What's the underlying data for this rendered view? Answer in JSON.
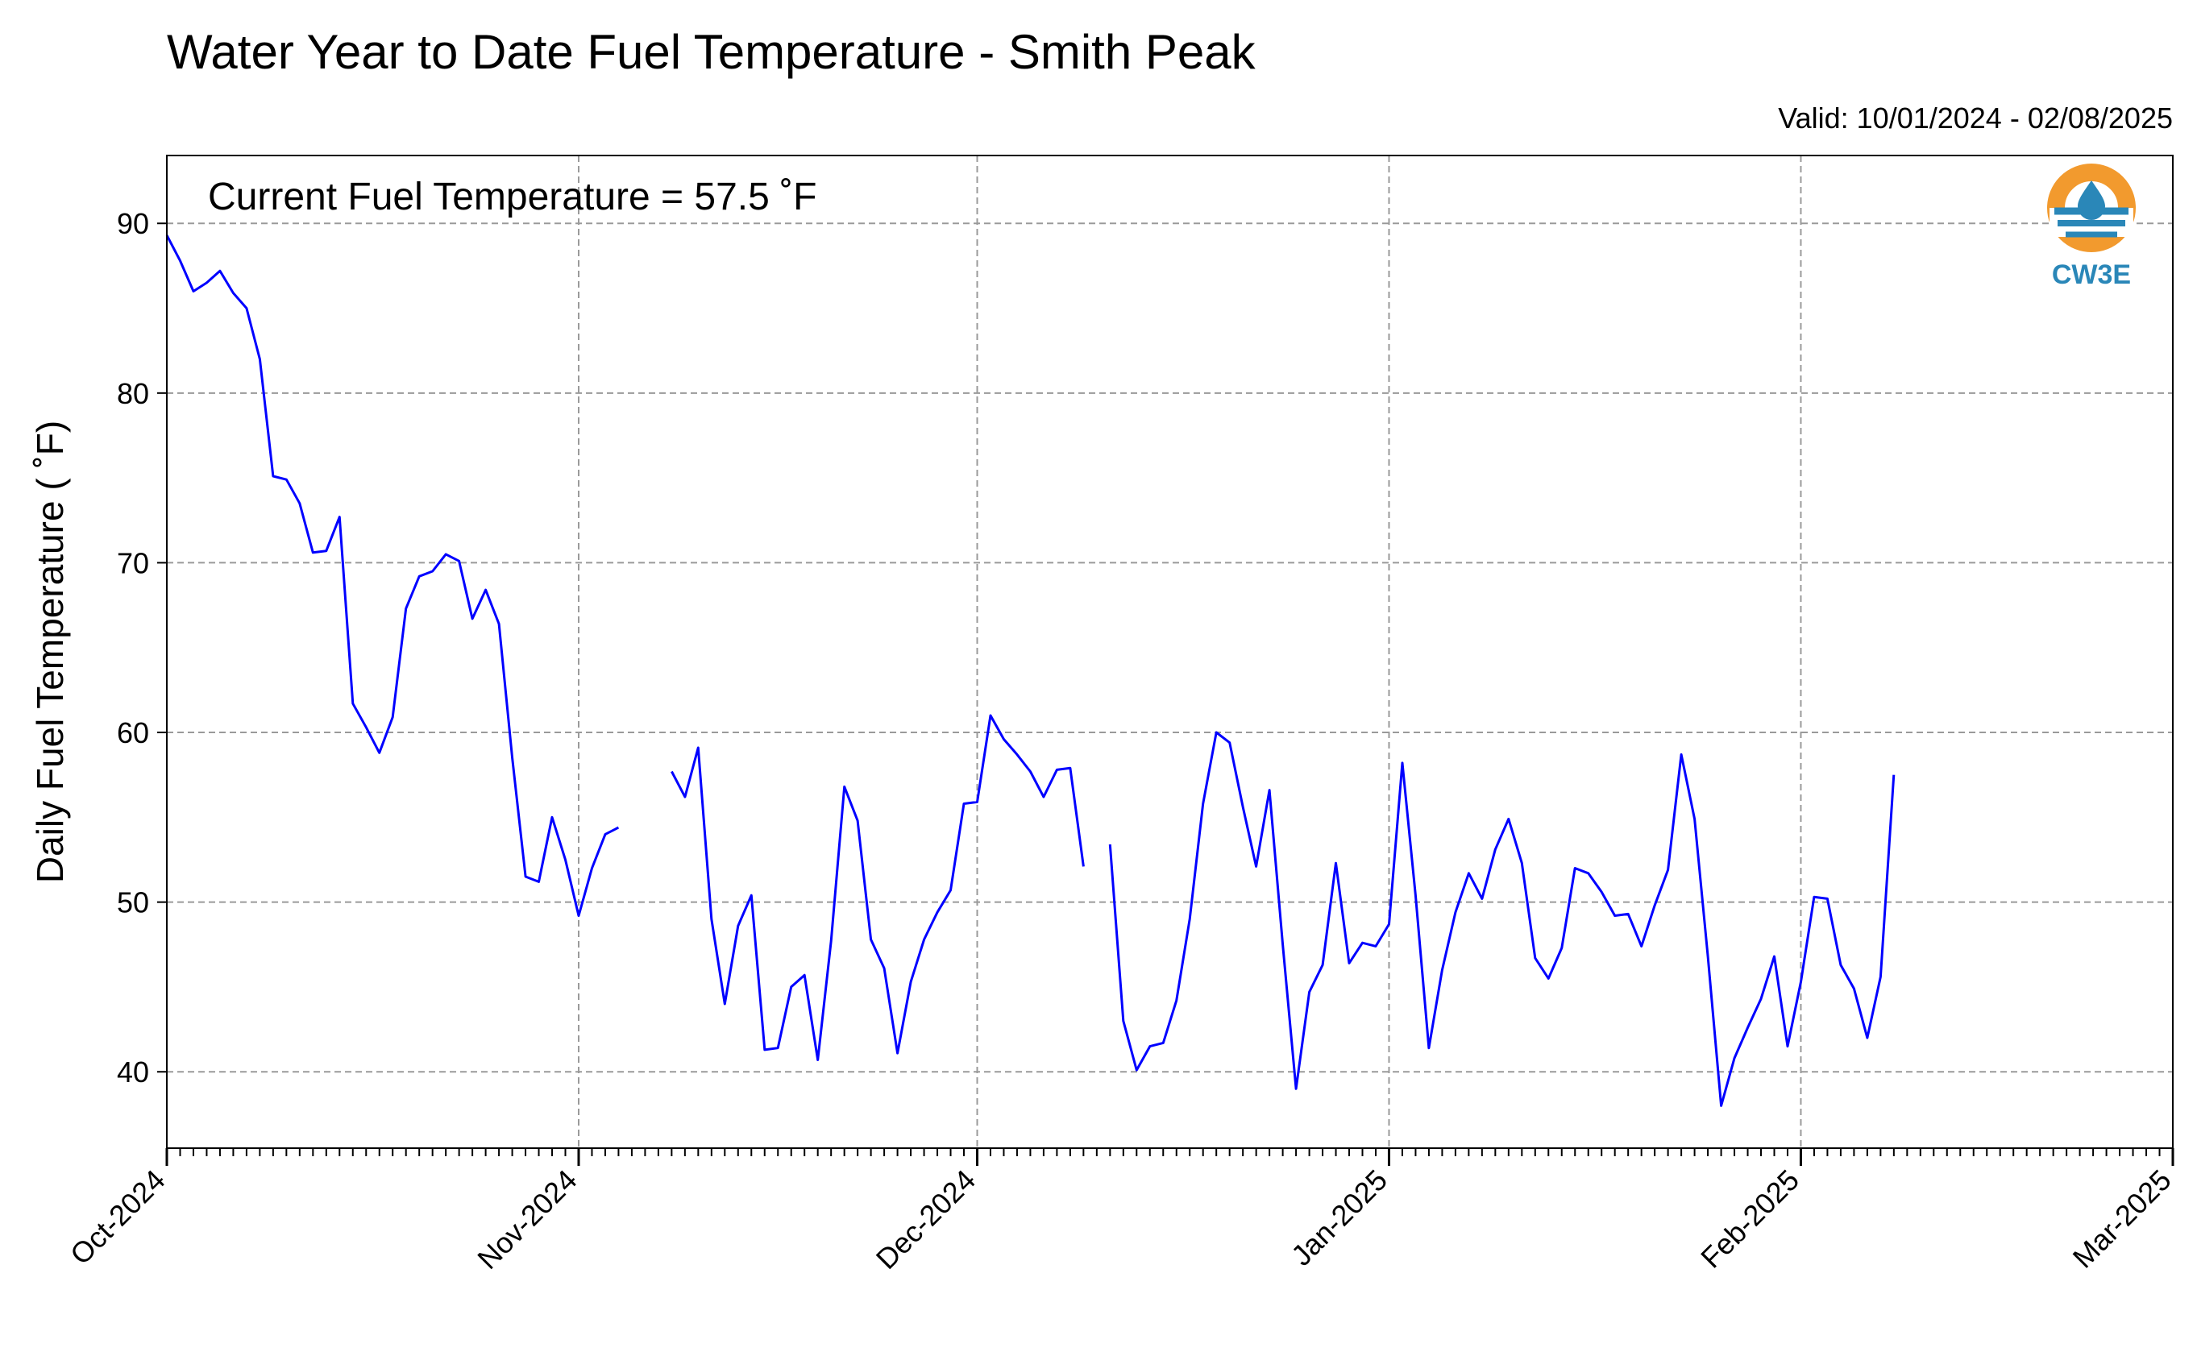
{
  "chart_data": {
    "type": "line",
    "title": "Water Year to Date Fuel Temperature - Smith Peak",
    "subtitle": "Valid: 10/01/2024 - 02/08/2025",
    "xlabel": "",
    "ylabel": "Daily Fuel Temperature ( ˚F)",
    "annotation": "Current Fuel Temperature = 57.5 ˚F",
    "logo_text": "CW3E",
    "x_range": [
      "2024-10-01",
      "2025-03-01"
    ],
    "ylim": [
      35.5,
      94
    ],
    "yticks": [
      40,
      50,
      60,
      70,
      80,
      90
    ],
    "xticks": [
      {
        "date": "2024-10-01",
        "label": "Oct-2024"
      },
      {
        "date": "2024-11-01",
        "label": "Nov-2024"
      },
      {
        "date": "2024-12-01",
        "label": "Dec-2024"
      },
      {
        "date": "2025-01-01",
        "label": "Jan-2025"
      },
      {
        "date": "2025-02-01",
        "label": "Feb-2025"
      },
      {
        "date": "2025-03-01",
        "label": "Mar-2025"
      }
    ],
    "grid": true,
    "series": [
      {
        "color": "#0000ff",
        "x": [
          "2024-10-01",
          "2024-10-02",
          "2024-10-03",
          "2024-10-04",
          "2024-10-05",
          "2024-10-06",
          "2024-10-07",
          "2024-10-08",
          "2024-10-09",
          "2024-10-10",
          "2024-10-11",
          "2024-10-12",
          "2024-10-13",
          "2024-10-14",
          "2024-10-15",
          "2024-10-16",
          "2024-10-17",
          "2024-10-18",
          "2024-10-19",
          "2024-10-20",
          "2024-10-21",
          "2024-10-22",
          "2024-10-23",
          "2024-10-24",
          "2024-10-25",
          "2024-10-26",
          "2024-10-27",
          "2024-10-28",
          "2024-10-29",
          "2024-10-30",
          "2024-10-31",
          "2024-11-01",
          "2024-11-02",
          "2024-11-03",
          "2024-11-04",
          "2024-11-05",
          "2024-11-06",
          "2024-11-07",
          "2024-11-08",
          "2024-11-09",
          "2024-11-10",
          "2024-11-11",
          "2024-11-12",
          "2024-11-13",
          "2024-11-14",
          "2024-11-15",
          "2024-11-16",
          "2024-11-17",
          "2024-11-18",
          "2024-11-19",
          "2024-11-20",
          "2024-11-21",
          "2024-11-22",
          "2024-11-23",
          "2024-11-24",
          "2024-11-25",
          "2024-11-26",
          "2024-11-27",
          "2024-11-28",
          "2024-11-29",
          "2024-11-30",
          "2024-12-01",
          "2024-12-02",
          "2024-12-03",
          "2024-12-04",
          "2024-12-05",
          "2024-12-06",
          "2024-12-07",
          "2024-12-08",
          "2024-12-09",
          "2024-12-10",
          "2024-12-11",
          "2024-12-12",
          "2024-12-13",
          "2024-12-14",
          "2024-12-15",
          "2024-12-16",
          "2024-12-17",
          "2024-12-18",
          "2024-12-19",
          "2024-12-20",
          "2024-12-21",
          "2024-12-22",
          "2024-12-23",
          "2024-12-24",
          "2024-12-25",
          "2024-12-26",
          "2024-12-27",
          "2024-12-28",
          "2024-12-29",
          "2024-12-30",
          "2024-12-31",
          "2025-01-01",
          "2025-01-02",
          "2025-01-03",
          "2025-01-04",
          "2025-01-05",
          "2025-01-06",
          "2025-01-07",
          "2025-01-08",
          "2025-01-09",
          "2025-01-10",
          "2025-01-11",
          "2025-01-12",
          "2025-01-13",
          "2025-01-14",
          "2025-01-15",
          "2025-01-16",
          "2025-01-17",
          "2025-01-18",
          "2025-01-19",
          "2025-01-20",
          "2025-01-21",
          "2025-01-22",
          "2025-01-23",
          "2025-01-24",
          "2025-01-25",
          "2025-01-26",
          "2025-01-27",
          "2025-01-28",
          "2025-01-29",
          "2025-01-30",
          "2025-01-31",
          "2025-02-01",
          "2025-02-02",
          "2025-02-03",
          "2025-02-04",
          "2025-02-05",
          "2025-02-06",
          "2025-02-07",
          "2025-02-08"
        ],
        "y": [
          89.3,
          87.8,
          86.0,
          86.5,
          87.2,
          85.9,
          85.0,
          82.0,
          75.1,
          74.9,
          73.5,
          70.6,
          70.7,
          72.7,
          61.7,
          60.3,
          58.8,
          60.9,
          67.3,
          69.2,
          69.5,
          70.5,
          70.1,
          66.7,
          68.4,
          66.4,
          58.5,
          51.5,
          51.2,
          55.0,
          52.5,
          49.2,
          52.0,
          54.0,
          54.4,
          null,
          null,
          null,
          57.7,
          56.2,
          59.1,
          49.0,
          44.0,
          48.6,
          50.4,
          41.3,
          41.4,
          45.0,
          45.7,
          40.7,
          47.7,
          56.8,
          54.8,
          47.8,
          46.1,
          41.1,
          45.3,
          47.8,
          49.4,
          50.7,
          55.8,
          55.9,
          61.0,
          59.6,
          58.7,
          57.7,
          56.2,
          57.8,
          57.9,
          52.1,
          null,
          53.4,
          43.0,
          40.1,
          41.5,
          41.7,
          44.2,
          49.0,
          55.8,
          60.0,
          59.4,
          55.6,
          52.1,
          56.6,
          47.5,
          39.0,
          44.7,
          46.3,
          52.3,
          46.4,
          47.6,
          47.4,
          48.7,
          58.2,
          50.4,
          41.4,
          46.0,
          49.4,
          51.7,
          50.2,
          53.1,
          54.9,
          52.3,
          46.7,
          45.5,
          47.3,
          52.0,
          51.7,
          50.6,
          49.2,
          49.3,
          47.4,
          49.8,
          51.9,
          58.7,
          54.9,
          46.8,
          38.0,
          40.8,
          42.6,
          44.3,
          46.8,
          41.5,
          45.3,
          50.3,
          50.2,
          46.3,
          44.9,
          42.0,
          45.6,
          57.5
        ]
      }
    ]
  }
}
